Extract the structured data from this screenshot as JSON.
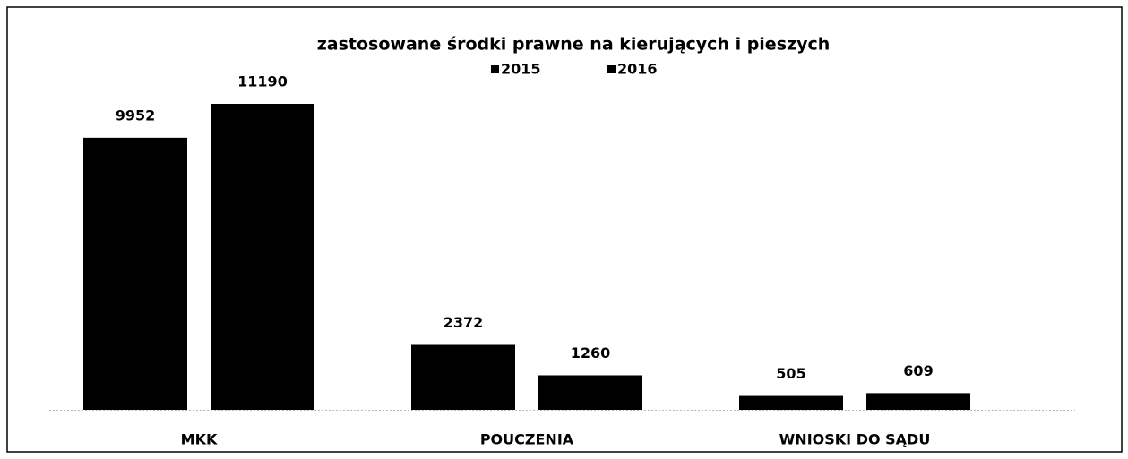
{
  "chart_data": {
    "type": "bar",
    "title": "zastosowane środki prawne na kierujących i pieszych",
    "categories": [
      "MKK",
      "POUCZENIA",
      "WNIOSKI DO SĄDU"
    ],
    "series": [
      {
        "name": "2015",
        "color": "#000000",
        "values": [
          9952,
          2372,
          505
        ]
      },
      {
        "name": "2016",
        "color": "#000000",
        "values": [
          11190,
          1260,
          609
        ]
      }
    ],
    "legend": "top"
  }
}
